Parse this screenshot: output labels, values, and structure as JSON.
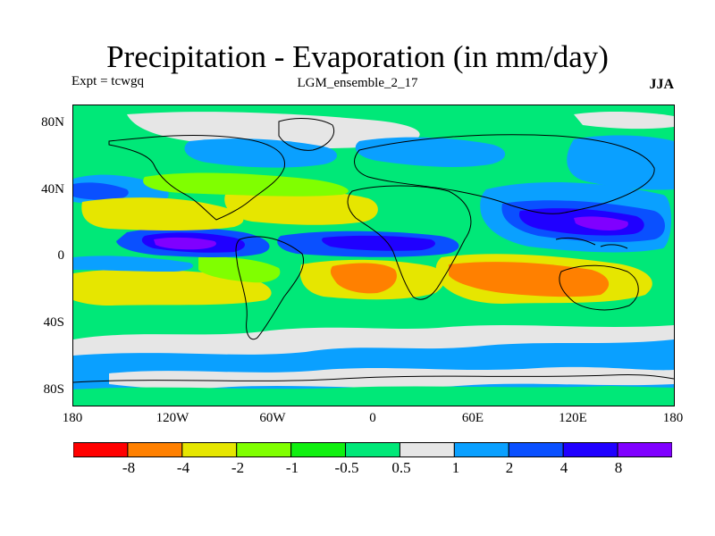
{
  "title": "Precipitation - Evaporation (in mm/day)",
  "experiment": "Expt = tcwgq",
  "run_name": "LGM_ensemble_2_17",
  "season": "JJA",
  "map": {
    "projection": "cylindrical equidistant",
    "lon_range": [
      -180,
      180
    ],
    "lat_range": [
      -90,
      90
    ],
    "lat_ticks": [
      "80N",
      "40N",
      "0",
      "40S",
      "80S"
    ],
    "lon_ticks": [
      "180",
      "120W",
      "60W",
      "0",
      "60E",
      "120E",
      "180"
    ],
    "background_class_color": "#00e878"
  },
  "legend": {
    "colors": [
      "#ff0000",
      "#ff8000",
      "#e6e600",
      "#80ff00",
      "#10f010",
      "#00e878",
      "#e6e6e6",
      "#0aa0ff",
      "#0a50ff",
      "#2000ff",
      "#8000ff"
    ],
    "labels": [
      "-8",
      "-4",
      "-2",
      "-1",
      "-0.5",
      "0.5",
      "1",
      "2",
      "4",
      "8"
    ]
  },
  "chart_data": {
    "type": "heatmap",
    "title": "Precipitation - Evaporation (in mm/day)",
    "units": "mm/day",
    "contour_levels": [
      -8,
      -4,
      -2,
      -1,
      -0.5,
      0.5,
      1,
      2,
      4,
      8
    ],
    "classes": [
      {
        "range": "< -8",
        "color": "#ff0000"
      },
      {
        "range": "-8 to -4",
        "color": "#ff8000"
      },
      {
        "range": "-4 to -2",
        "color": "#e6e600"
      },
      {
        "range": "-2 to -1",
        "color": "#80ff00"
      },
      {
        "range": "-1 to -0.5",
        "color": "#10f010"
      },
      {
        "range": "-0.5 to 0.5",
        "color": "#00e878"
      },
      {
        "range": "0.5 to 1",
        "color": "#e6e6e6"
      },
      {
        "range": "1 to 2",
        "color": "#0aa0ff"
      },
      {
        "range": "2 to 4",
        "color": "#0a50ff"
      },
      {
        "range": "4 to 8",
        "color": "#2000ff"
      },
      {
        "range": "> 8",
        "color": "#8000ff"
      }
    ],
    "xlabel": "",
    "ylabel": "",
    "xlim": [
      -180,
      180
    ],
    "ylim": [
      -90,
      90
    ]
  }
}
